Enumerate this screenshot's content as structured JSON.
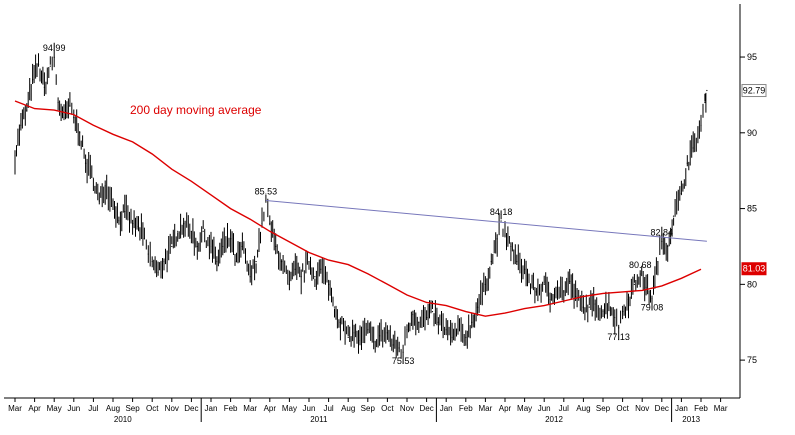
{
  "chart_data": {
    "type": "line",
    "title": "",
    "xlabel": "",
    "ylabel": "",
    "ylim": [
      72.5,
      98.5
    ],
    "y_ticks": [
      75,
      80,
      85,
      90,
      95
    ],
    "x_ticks": [
      "Mar",
      "Apr",
      "May",
      "Jun",
      "Jul",
      "Aug",
      "Sep",
      "Oct",
      "Nov",
      "Dec",
      "Jan",
      "Feb",
      "Mar",
      "Apr",
      "May",
      "Jun",
      "Jul",
      "Aug",
      "Sep",
      "Oct",
      "Nov",
      "Dec",
      "Jan",
      "Feb",
      "Mar",
      "Apr",
      "May",
      "Jun",
      "Jul",
      "Aug",
      "Sep",
      "Oct",
      "Nov",
      "Dec",
      "Jan",
      "Feb",
      "Mar"
    ],
    "year_labels": [
      {
        "label": "2010",
        "month_index": 5.5
      },
      {
        "label": "2011",
        "month_index": 15.5
      },
      {
        "label": "2012",
        "month_index": 27.5
      },
      {
        "label": "2013",
        "month_index": 34.5
      }
    ],
    "series": [
      {
        "name": "",
        "color": "#000000",
        "style": "daily price (high-low bars)",
        "points": [
          [
            0,
            88.5
          ],
          [
            0.3,
            90.5
          ],
          [
            0.6,
            91.5
          ],
          [
            0.9,
            93.5
          ],
          [
            1.2,
            94.5
          ],
          [
            1.5,
            93.0
          ],
          [
            1.8,
            94.4
          ],
          [
            2.0,
            94.99
          ],
          [
            2.2,
            92.0
          ],
          [
            2.5,
            91.0
          ],
          [
            2.8,
            91.8
          ],
          [
            3.0,
            91.0
          ],
          [
            3.3,
            90.0
          ],
          [
            3.6,
            88.0
          ],
          [
            4.0,
            87.0
          ],
          [
            4.3,
            85.5
          ],
          [
            4.6,
            86.5
          ],
          [
            5.0,
            85.5
          ],
          [
            5.3,
            84.2
          ],
          [
            5.6,
            84.8
          ],
          [
            6.0,
            84.0
          ],
          [
            6.3,
            83.8
          ],
          [
            6.6,
            83.0
          ],
          [
            6.8,
            82.0
          ],
          [
            7.0,
            81.5
          ],
          [
            7.3,
            80.8
          ],
          [
            7.6,
            81.5
          ],
          [
            8.0,
            82.5
          ],
          [
            8.3,
            83.5
          ],
          [
            8.6,
            84.0
          ],
          [
            9.0,
            83.5
          ],
          [
            9.3,
            82.5
          ],
          [
            9.6,
            83.5
          ],
          [
            10.0,
            82.5
          ],
          [
            10.3,
            81.5
          ],
          [
            10.6,
            82.5
          ],
          [
            11.0,
            83.0
          ],
          [
            11.3,
            81.5
          ],
          [
            11.6,
            82.5
          ],
          [
            12.0,
            80.5
          ],
          [
            12.3,
            81.5
          ],
          [
            12.6,
            84.0
          ],
          [
            12.8,
            85.53
          ],
          [
            13.0,
            84.0
          ],
          [
            13.3,
            82.5
          ],
          [
            13.6,
            81.5
          ],
          [
            14.0,
            80.0
          ],
          [
            14.3,
            81.0
          ],
          [
            14.6,
            80.5
          ],
          [
            15.0,
            81.5
          ],
          [
            15.3,
            80.5
          ],
          [
            15.6,
            81.0
          ],
          [
            16.0,
            80.0
          ],
          [
            16.3,
            78.5
          ],
          [
            16.6,
            77.5
          ],
          [
            17.0,
            76.5
          ],
          [
            17.3,
            76.8
          ],
          [
            17.6,
            76.3
          ],
          [
            18.0,
            77.0
          ],
          [
            18.3,
            76.2
          ],
          [
            18.6,
            76.6
          ],
          [
            19.0,
            76.8
          ],
          [
            19.3,
            76.0
          ],
          [
            19.6,
            75.8
          ],
          [
            19.8,
            75.53
          ],
          [
            20.0,
            77.0
          ],
          [
            20.3,
            78.0
          ],
          [
            20.6,
            77.5
          ],
          [
            21.0,
            77.8
          ],
          [
            21.3,
            78.2
          ],
          [
            21.6,
            77.5
          ],
          [
            22.0,
            77.0
          ],
          [
            22.3,
            76.5
          ],
          [
            22.6,
            77.0
          ],
          [
            23.0,
            76.5
          ],
          [
            23.3,
            77.5
          ],
          [
            23.6,
            78.5
          ],
          [
            24.0,
            80.0
          ],
          [
            24.3,
            81.5
          ],
          [
            24.6,
            83.0
          ],
          [
            24.8,
            84.18
          ],
          [
            25.0,
            83.2
          ],
          [
            25.3,
            82.5
          ],
          [
            25.6,
            81.5
          ],
          [
            26.0,
            81.0
          ],
          [
            26.3,
            80.0
          ],
          [
            26.6,
            79.5
          ],
          [
            27.0,
            80.0
          ],
          [
            27.3,
            79.0
          ],
          [
            27.6,
            79.8
          ],
          [
            28.0,
            79.5
          ],
          [
            28.3,
            80.2
          ],
          [
            28.6,
            79.2
          ],
          [
            29.0,
            78.5
          ],
          [
            29.3,
            78.5
          ],
          [
            29.6,
            78.7
          ],
          [
            30.0,
            78.2
          ],
          [
            30.3,
            78.8
          ],
          [
            30.6,
            77.8
          ],
          [
            30.8,
            77.13
          ],
          [
            31.0,
            78.2
          ],
          [
            31.3,
            79.0
          ],
          [
            31.6,
            80.0
          ],
          [
            31.9,
            80.68
          ],
          [
            32.2,
            79.8
          ],
          [
            32.5,
            79.08
          ],
          [
            32.8,
            81.5
          ],
          [
            33.0,
            82.84
          ],
          [
            33.3,
            82.5
          ],
          [
            33.6,
            84.5
          ],
          [
            34.0,
            86.0
          ],
          [
            34.3,
            88.0
          ],
          [
            34.6,
            89.0
          ],
          [
            35.0,
            90.5
          ],
          [
            35.2,
            92.0
          ],
          [
            35.3,
            92.79
          ]
        ]
      },
      {
        "name": "200 day moving average",
        "color": "#dd0000",
        "style": "line",
        "points": [
          [
            0,
            92.1
          ],
          [
            1,
            91.6
          ],
          [
            2,
            91.5
          ],
          [
            3,
            91.2
          ],
          [
            4,
            90.5
          ],
          [
            5,
            89.9
          ],
          [
            6,
            89.4
          ],
          [
            7,
            88.6
          ],
          [
            8,
            87.6
          ],
          [
            9,
            86.8
          ],
          [
            10,
            85.9
          ],
          [
            11,
            85.0
          ],
          [
            12,
            84.3
          ],
          [
            13,
            83.5
          ],
          [
            14,
            82.8
          ],
          [
            15,
            82.1
          ],
          [
            16,
            81.6
          ],
          [
            17,
            81.3
          ],
          [
            18,
            80.7
          ],
          [
            19,
            80.0
          ],
          [
            20,
            79.3
          ],
          [
            21,
            78.8
          ],
          [
            22,
            78.6
          ],
          [
            23,
            78.2
          ],
          [
            24,
            77.9
          ],
          [
            25,
            78.1
          ],
          [
            26,
            78.4
          ],
          [
            27,
            78.6
          ],
          [
            28,
            78.9
          ],
          [
            29,
            79.2
          ],
          [
            30,
            79.4
          ],
          [
            31,
            79.5
          ],
          [
            32,
            79.6
          ],
          [
            33,
            79.9
          ],
          [
            34,
            80.4
          ],
          [
            35,
            81.0
          ]
        ]
      },
      {
        "name": "",
        "color": "#7777bb",
        "style": "trend line",
        "points": [
          [
            12.8,
            85.53
          ],
          [
            35.3,
            82.84
          ]
        ]
      }
    ],
    "annotations": [
      {
        "text": "94.99",
        "x": 2.0,
        "y": 94.99,
        "anchor": "top"
      },
      {
        "text": "85.53",
        "x": 12.8,
        "y": 85.53,
        "anchor": "top"
      },
      {
        "text": "84.18",
        "x": 24.8,
        "y": 84.18,
        "anchor": "top"
      },
      {
        "text": "75.53",
        "x": 19.8,
        "y": 75.53,
        "anchor": "bottom"
      },
      {
        "text": "77.13",
        "x": 30.8,
        "y": 77.13,
        "anchor": "bottom"
      },
      {
        "text": "80.68",
        "x": 31.9,
        "y": 80.68,
        "anchor": "top"
      },
      {
        "text": "79.08",
        "x": 32.5,
        "y": 79.08,
        "anchor": "bottom"
      },
      {
        "text": "82.84",
        "x": 33.0,
        "y": 82.84,
        "anchor": "top"
      }
    ],
    "series_label": "200 day moving average",
    "last_values": [
      {
        "text": "92.79",
        "y": 92.79,
        "bg": "#ffffff",
        "fg": "#000000",
        "border": "#888888"
      },
      {
        "text": "81.03",
        "y": 81.03,
        "bg": "#dd0000",
        "fg": "#ffffff",
        "border": "#dd0000"
      }
    ],
    "grid": false
  }
}
